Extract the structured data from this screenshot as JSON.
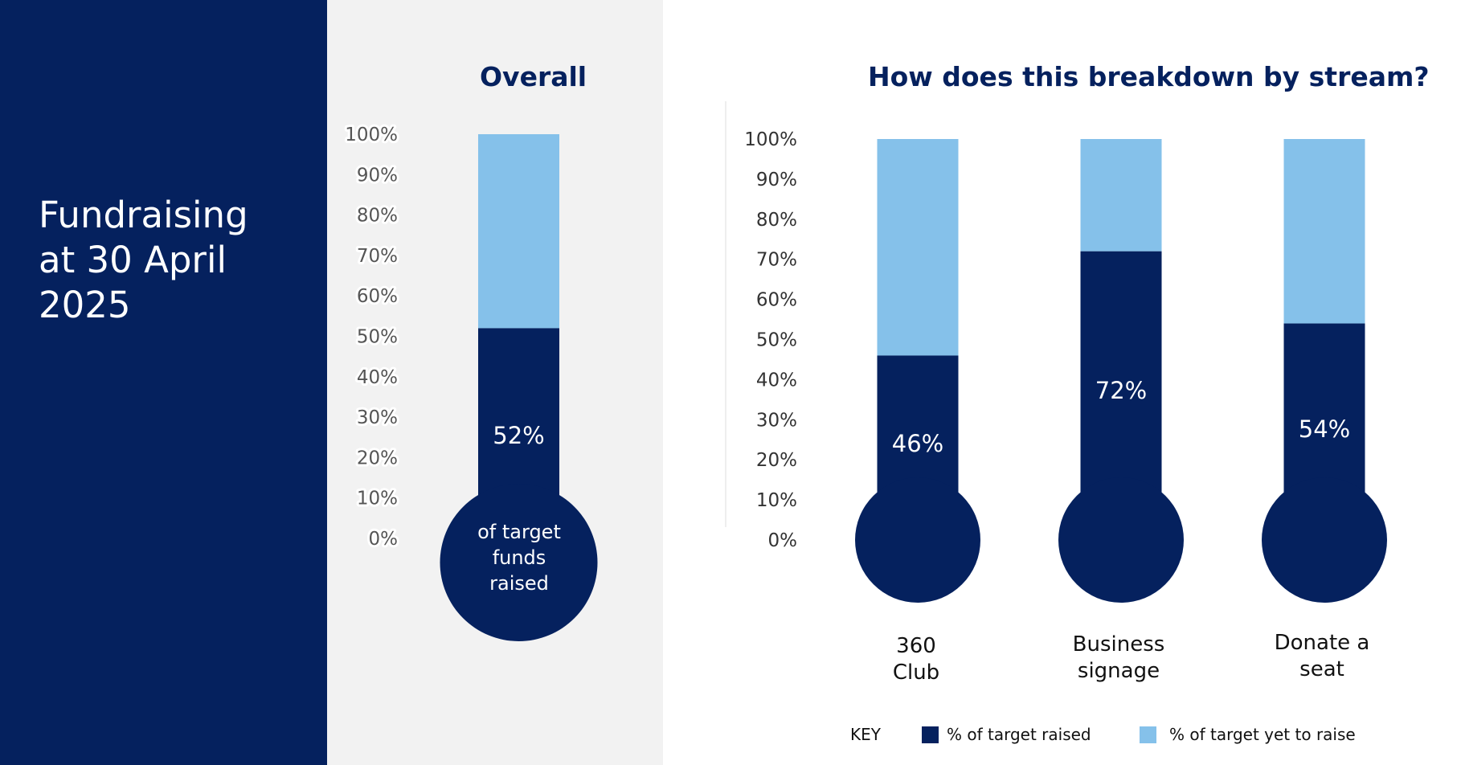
{
  "panel_title": [
    "Fundraising",
    "at 30 April",
    "2025"
  ],
  "colors": {
    "raised": "#05215e",
    "yet_to_raise": "#85c1ea",
    "panel": "#05215e"
  },
  "key": {
    "label": "KEY",
    "raised": "% of target raised",
    "yet_to_raise": "% of target yet to raise"
  },
  "chart_data": [
    {
      "type": "bar",
      "title": "Overall",
      "ylim": [
        0,
        100
      ],
      "yticks": [
        "0%",
        "10%",
        "20%",
        "30%",
        "40%",
        "50%",
        "60%",
        "70%",
        "80%",
        "90%",
        "100%"
      ],
      "categories": [
        ""
      ],
      "series": [
        {
          "name": "% of target raised",
          "values": [
            52
          ]
        },
        {
          "name": "% of target yet to raise",
          "values": [
            48
          ]
        }
      ],
      "data_labels": [
        "52%"
      ],
      "bulb_text": [
        "of target",
        "funds",
        "raised"
      ]
    },
    {
      "type": "bar",
      "title": "How does this breakdown by stream?",
      "ylim": [
        0,
        100
      ],
      "yticks": [
        "0%",
        "10%",
        "20%",
        "30%",
        "40%",
        "50%",
        "60%",
        "70%",
        "80%",
        "90%",
        "100%"
      ],
      "categories": [
        [
          "360",
          "Club"
        ],
        [
          "Business",
          "signage"
        ],
        [
          "Donate a",
          "seat"
        ]
      ],
      "series": [
        {
          "name": "% of target raised",
          "values": [
            46,
            72,
            54
          ]
        },
        {
          "name": "% of target yet to raise",
          "values": [
            54,
            28,
            46
          ]
        }
      ],
      "data_labels": [
        "46%",
        "72%",
        "54%"
      ],
      "legend": "bottom"
    }
  ]
}
